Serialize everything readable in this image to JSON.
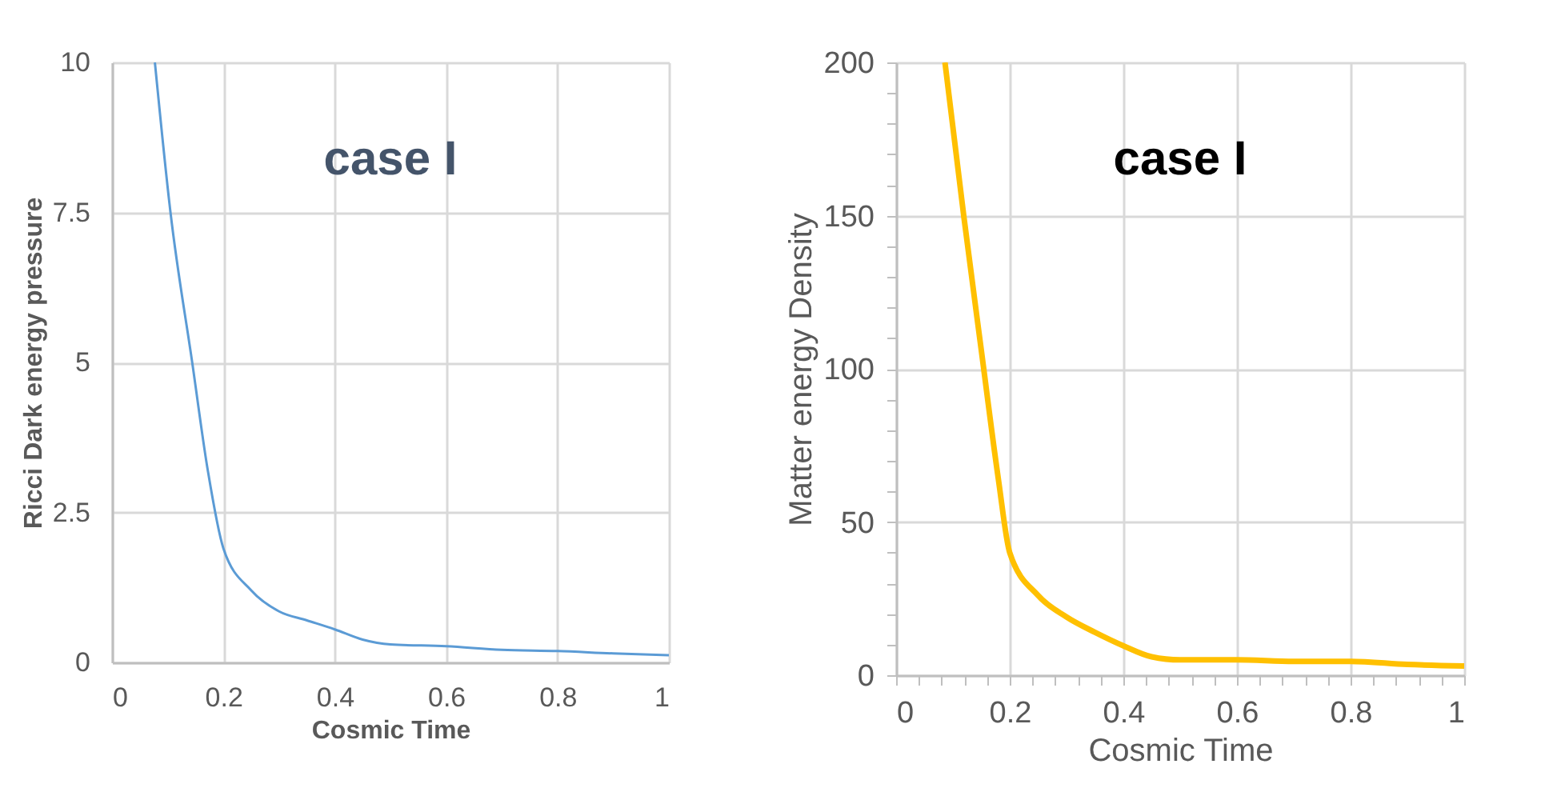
{
  "chart_data": [
    {
      "type": "line",
      "title": "case I",
      "xlabel": "Cosmic Time",
      "ylabel": "Ricci Dark energy pressure",
      "x": [
        0.077,
        0.105,
        0.144,
        0.172,
        0.2,
        0.25,
        0.3,
        0.35,
        0.4,
        0.45,
        0.5,
        0.6,
        0.7,
        0.8,
        0.9,
        1
      ],
      "series": [
        {
          "color": "#5b9bd5",
          "values": [
            10,
            7.5,
            5,
            3.2,
            1.9,
            1.2,
            0.85,
            0.7,
            0.55,
            0.38,
            0.3,
            0.27,
            0.21,
            0.19,
            0.15,
            0.12
          ]
        }
      ],
      "xlim": [
        0,
        1
      ],
      "xticks": [
        0,
        0.2,
        0.4,
        0.6,
        0.8,
        1
      ],
      "ylim": [
        0,
        10
      ],
      "yticks": [
        0,
        2.5,
        5,
        7.5,
        10
      ],
      "grid": true,
      "marker": "none"
    },
    {
      "type": "line",
      "title": "case I",
      "xlabel": "Cosmic Time",
      "ylabel": "Matter energy Density",
      "x": [
        0.086,
        0.119,
        0.15,
        0.18,
        0.2,
        0.25,
        0.3,
        0.35,
        0.4,
        0.45,
        0.5,
        0.6,
        0.7,
        0.8,
        0.9,
        1
      ],
      "series": [
        {
          "color": "#ffc000",
          "values": [
            200,
            150,
            106,
            64,
            40,
            26,
            19,
            14,
            9.6,
            6,
            5,
            5,
            4.5,
            4.5,
            3.5,
            3
          ]
        }
      ],
      "xlim": [
        0,
        1
      ],
      "xticks": [
        0,
        {
          "value": 0.04,
          "label": null
        },
        {
          "value": 0.08,
          "label": null
        },
        {
          "value": 0.12,
          "label": null
        },
        {
          "value": 0.16,
          "label": null
        },
        0.2,
        {
          "value": 0.24,
          "label": null
        },
        {
          "value": 0.28,
          "label": null
        },
        {
          "value": 0.32,
          "label": null
        },
        {
          "value": 0.36,
          "label": null
        },
        0.4,
        {
          "value": 0.44,
          "label": null
        },
        {
          "value": 0.48,
          "label": null
        },
        {
          "value": 0.52,
          "label": null
        },
        {
          "value": 0.56,
          "label": null
        },
        0.6,
        {
          "value": 0.64,
          "label": null
        },
        {
          "value": 0.68,
          "label": null
        },
        {
          "value": 0.72,
          "label": null
        },
        {
          "value": 0.76,
          "label": null
        },
        0.8,
        {
          "value": 0.84,
          "label": null
        },
        {
          "value": 0.88,
          "label": null
        },
        {
          "value": 0.92,
          "label": null
        },
        {
          "value": 0.96,
          "label": null
        },
        1
      ],
      "ylim": [
        0,
        200
      ],
      "yticks": [
        0,
        {
          "value": 10,
          "label": null
        },
        {
          "value": 20,
          "label": null
        },
        {
          "value": 30,
          "label": null
        },
        {
          "value": 40,
          "label": null
        },
        50,
        {
          "value": 60,
          "label": null
        },
        {
          "value": 70,
          "label": null
        },
        {
          "value": 80,
          "label": null
        },
        {
          "value": 90,
          "label": null
        },
        100,
        {
          "value": 110,
          "label": null
        },
        {
          "value": 120,
          "label": null
        },
        {
          "value": 130,
          "label": null
        },
        {
          "value": 140,
          "label": null
        },
        150,
        {
          "value": 160,
          "label": null
        },
        {
          "value": 170,
          "label": null
        },
        {
          "value": 180,
          "label": null
        },
        {
          "value": 190,
          "label": null
        },
        200
      ],
      "grid": true,
      "marker": "none"
    }
  ]
}
